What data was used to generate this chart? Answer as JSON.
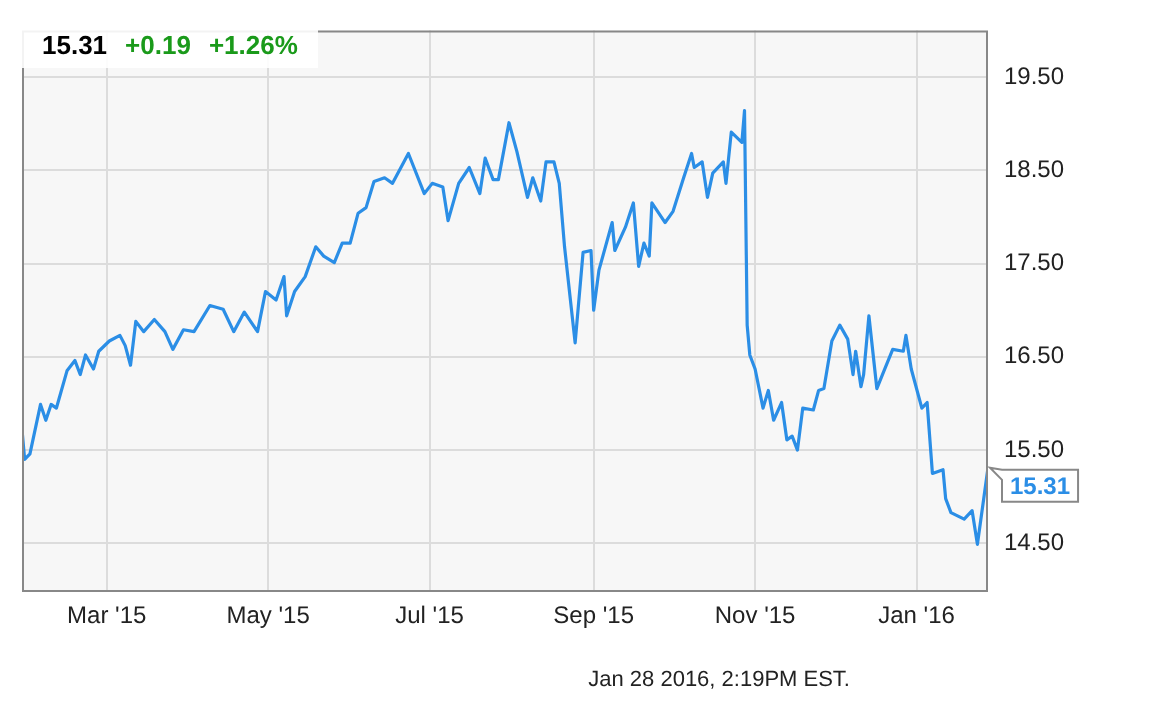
{
  "chart_data": {
    "type": "line",
    "title": "15.31",
    "subtitle": "Jan 28 2016, 2:19PM EST.",
    "annotations": [
      "+0.19",
      "+1.26%",
      {
        "text": "15.31",
        "x": "2016-01-28",
        "y": 15.31
      }
    ],
    "x": [
      "2015-01-28",
      "2015-01-29",
      "2015-01-31",
      "2015-02-04",
      "2015-02-06",
      "2015-02-08",
      "2015-02-10",
      "2015-02-11",
      "2015-02-14",
      "2015-02-17",
      "2015-02-19",
      "2015-02-21",
      "2015-02-24",
      "2015-02-26",
      "2015-03-02",
      "2015-03-06",
      "2015-03-08",
      "2015-03-10",
      "2015-03-12",
      "2015-03-15",
      "2015-03-19",
      "2015-03-23",
      "2015-03-26",
      "2015-03-30",
      "2015-04-03",
      "2015-04-09",
      "2015-04-14",
      "2015-04-18",
      "2015-04-22",
      "2015-04-27",
      "2015-04-30",
      "2015-05-04",
      "2015-05-07",
      "2015-05-08",
      "2015-05-11",
      "2015-05-15",
      "2015-05-19",
      "2015-05-22",
      "2015-05-26",
      "2015-05-29",
      "2015-06-01",
      "2015-06-04",
      "2015-06-07",
      "2015-06-10",
      "2015-06-14",
      "2015-06-17",
      "2015-06-23",
      "2015-06-29",
      "2015-07-02",
      "2015-07-06",
      "2015-07-08",
      "2015-07-12",
      "2015-07-16",
      "2015-07-20",
      "2015-07-22",
      "2015-07-25",
      "2015-07-27",
      "2015-07-31",
      "2015-08-03",
      "2015-08-07",
      "2015-08-09",
      "2015-08-12",
      "2015-08-14",
      "2015-08-17",
      "2015-08-19",
      "2015-08-21",
      "2015-08-25",
      "2015-08-28",
      "2015-08-31",
      "2015-09-01",
      "2015-09-03",
      "2015-09-08",
      "2015-09-09",
      "2015-09-13",
      "2015-09-16",
      "2015-09-18",
      "2015-09-20",
      "2015-09-22",
      "2015-09-23",
      "2015-09-28",
      "2015-10-01",
      "2015-10-05",
      "2015-10-08",
      "2015-10-09",
      "2015-10-12",
      "2015-10-14",
      "2015-10-16",
      "2015-10-20",
      "2015-10-21",
      "2015-10-23",
      "2015-10-27",
      "2015-10-28",
      "2015-10-29",
      "2015-10-30",
      "2015-11-01",
      "2015-11-04",
      "2015-11-06",
      "2015-11-08",
      "2015-11-11",
      "2015-11-13",
      "2015-11-15",
      "2015-11-17",
      "2015-11-19",
      "2015-11-23",
      "2015-11-25",
      "2015-11-27",
      "2015-11-30",
      "2015-12-03",
      "2015-12-06",
      "2015-12-08",
      "2015-12-09",
      "2015-12-11",
      "2015-12-12",
      "2015-12-14",
      "2015-12-17",
      "2015-12-20",
      "2015-12-23",
      "2015-12-27",
      "2015-12-28",
      "2015-12-30",
      "2016-01-03",
      "2016-01-05",
      "2016-01-07",
      "2016-01-11",
      "2016-01-12",
      "2016-01-14",
      "2016-01-19",
      "2016-01-22",
      "2016-01-24",
      "2016-01-28"
    ],
    "series": [
      {
        "color": "#2b8ee6",
        "values": [
          15.72,
          15.4,
          15.46,
          15.99,
          15.82,
          15.99,
          15.95,
          16.05,
          16.35,
          16.46,
          16.31,
          16.52,
          16.37,
          16.56,
          16.67,
          16.73,
          16.62,
          16.41,
          16.88,
          16.77,
          16.9,
          16.77,
          16.58,
          16.79,
          16.77,
          17.05,
          17.01,
          16.77,
          16.98,
          16.77,
          17.2,
          17.11,
          17.36,
          16.94,
          17.2,
          17.36,
          17.68,
          17.58,
          17.51,
          17.72,
          17.72,
          18.04,
          18.1,
          18.38,
          18.42,
          18.36,
          18.68,
          18.25,
          18.36,
          18.32,
          17.96,
          18.36,
          18.53,
          18.25,
          18.63,
          18.4,
          18.4,
          19.01,
          18.7,
          18.21,
          18.42,
          18.17,
          18.59,
          18.59,
          18.36,
          17.68,
          16.65,
          17.62,
          17.64,
          17.0,
          17.43,
          17.94,
          17.64,
          17.89,
          18.15,
          17.47,
          17.72,
          17.58,
          18.15,
          17.94,
          18.06,
          18.42,
          18.68,
          18.53,
          18.59,
          18.21,
          18.47,
          18.59,
          18.36,
          18.91,
          18.8,
          19.14,
          16.84,
          16.52,
          16.37,
          15.95,
          16.14,
          15.82,
          16.01,
          15.61,
          15.65,
          15.5,
          15.95,
          15.93,
          16.14,
          16.16,
          16.67,
          16.84,
          16.69,
          16.31,
          16.56,
          16.18,
          16.31,
          16.94,
          16.16,
          16.37,
          16.58,
          16.56,
          16.73,
          16.37,
          15.95,
          16.01,
          15.25,
          15.29,
          14.98,
          14.83,
          14.76,
          14.85,
          14.49,
          15.31
        ]
      }
    ],
    "xlim": [
      "2015-01-28",
      "2016-01-28"
    ],
    "xticks": [
      {
        "value": "2015-03-01",
        "label": "Mar '15"
      },
      {
        "value": "2015-05-01",
        "label": "May '15"
      },
      {
        "value": "2015-07-01",
        "label": "Jul '15"
      },
      {
        "value": "2015-09-01",
        "label": "Sep '15"
      },
      {
        "value": "2015-11-01",
        "label": "Nov '15"
      },
      {
        "value": "2016-01-01",
        "label": "Jan '16"
      }
    ],
    "ylim": [
      14,
      20
    ],
    "yticks": [
      {
        "value": 14.5,
        "label": "14.50"
      },
      {
        "value": 15.5,
        "label": "15.50"
      },
      {
        "value": 16.5,
        "label": "16.50"
      },
      {
        "value": 17.5,
        "label": "17.50"
      },
      {
        "value": 18.5,
        "label": "18.50"
      },
      {
        "value": 19.5,
        "label": "19.50"
      }
    ],
    "grid": true,
    "marker": "none",
    "line_style": "solid",
    "legend": false
  }
}
